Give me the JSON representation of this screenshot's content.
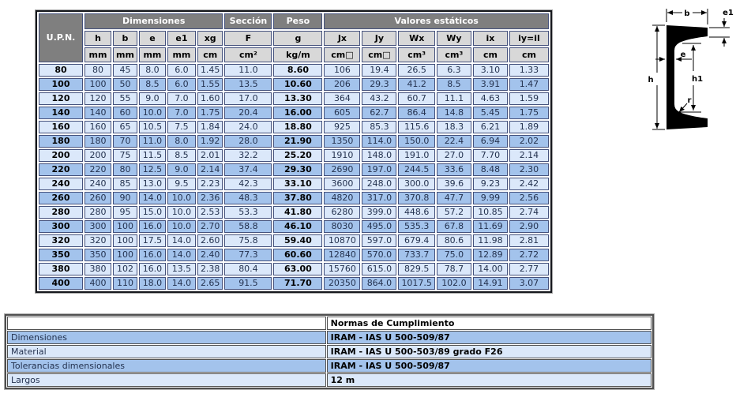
{
  "main_table": {
    "corner_label": "U.P.N.",
    "groups": [
      {
        "label": "Dimensiones",
        "span": 5
      },
      {
        "label": "Sección",
        "span": 1
      },
      {
        "label": "Peso",
        "span": 1
      },
      {
        "label": "Valores estáticos",
        "span": 6
      }
    ],
    "columns": [
      "h",
      "b",
      "e",
      "e1",
      "xg",
      "F",
      "g",
      "Jx",
      "Jy",
      "Wx",
      "Wy",
      "ix",
      "iy=il"
    ],
    "units": [
      "mm",
      "mm",
      "mm",
      "mm",
      "cm",
      "cm²",
      "kg/m",
      "cm□",
      "cm□",
      "cm³",
      "cm³",
      "cm",
      "cm"
    ],
    "rows": [
      {
        "upn": "80",
        "values": [
          "80",
          "45",
          "8.0",
          "6.0",
          "1.45",
          "11.0",
          "8.60",
          "106",
          "19.4",
          "26.5",
          "6.3",
          "3.10",
          "1.33"
        ]
      },
      {
        "upn": "100",
        "values": [
          "100",
          "50",
          "8.5",
          "6.0",
          "1.55",
          "13.5",
          "10.60",
          "206",
          "29.3",
          "41.2",
          "8.5",
          "3.91",
          "1.47"
        ]
      },
      {
        "upn": "120",
        "values": [
          "120",
          "55",
          "9.0",
          "7.0",
          "1.60",
          "17.0",
          "13.30",
          "364",
          "43.2",
          "60.7",
          "11.1",
          "4.63",
          "1.59"
        ]
      },
      {
        "upn": "140",
        "values": [
          "140",
          "60",
          "10.0",
          "7.0",
          "1.75",
          "20.4",
          "16.00",
          "605",
          "62.7",
          "86.4",
          "14.8",
          "5.45",
          "1.75"
        ]
      },
      {
        "upn": "160",
        "values": [
          "160",
          "65",
          "10.5",
          "7.5",
          "1.84",
          "24.0",
          "18.80",
          "925",
          "85.3",
          "115.6",
          "18.3",
          "6.21",
          "1.89"
        ]
      },
      {
        "upn": "180",
        "values": [
          "180",
          "70",
          "11.0",
          "8.0",
          "1.92",
          "28.0",
          "21.90",
          "1350",
          "114.0",
          "150.0",
          "22.4",
          "6.94",
          "2.02"
        ]
      },
      {
        "upn": "200",
        "values": [
          "200",
          "75",
          "11.5",
          "8.5",
          "2.01",
          "32.2",
          "25.20",
          "1910",
          "148.0",
          "191.0",
          "27.0",
          "7.70",
          "2.14"
        ]
      },
      {
        "upn": "220",
        "values": [
          "220",
          "80",
          "12.5",
          "9.0",
          "2.14",
          "37.4",
          "29.30",
          "2690",
          "197.0",
          "244.5",
          "33.6",
          "8.48",
          "2.30"
        ]
      },
      {
        "upn": "240",
        "values": [
          "240",
          "85",
          "13.0",
          "9.5",
          "2.23",
          "42.3",
          "33.10",
          "3600",
          "248.0",
          "300.0",
          "39.6",
          "9.23",
          "2.42"
        ]
      },
      {
        "upn": "260",
        "values": [
          "260",
          "90",
          "14.0",
          "10.0",
          "2.36",
          "48.3",
          "37.80",
          "4820",
          "317.0",
          "370.8",
          "47.7",
          "9.99",
          "2.56"
        ]
      },
      {
        "upn": "280",
        "values": [
          "280",
          "95",
          "15.0",
          "10.0",
          "2.53",
          "53.3",
          "41.80",
          "6280",
          "399.0",
          "448.6",
          "57.2",
          "10.85",
          "2.74"
        ]
      },
      {
        "upn": "300",
        "values": [
          "300",
          "100",
          "16.0",
          "10.0",
          "2.70",
          "58.8",
          "46.10",
          "8030",
          "495.0",
          "535.3",
          "67.8",
          "11.69",
          "2.90"
        ]
      },
      {
        "upn": "320",
        "values": [
          "320",
          "100",
          "17.5",
          "14.0",
          "2.60",
          "75.8",
          "59.40",
          "10870",
          "597.0",
          "679.4",
          "80.6",
          "11.98",
          "2.81"
        ]
      },
      {
        "upn": "350",
        "values": [
          "350",
          "100",
          "16.0",
          "14.0",
          "2.40",
          "77.3",
          "60.60",
          "12840",
          "570.0",
          "733.7",
          "75.0",
          "12.89",
          "2.72"
        ]
      },
      {
        "upn": "380",
        "values": [
          "380",
          "102",
          "16.0",
          "13.5",
          "2.38",
          "80.4",
          "63.00",
          "15760",
          "615.0",
          "829.5",
          "78.7",
          "14.00",
          "2.77"
        ]
      },
      {
        "upn": "400",
        "values": [
          "400",
          "110",
          "18.0",
          "14.0",
          "2.65",
          "91.5",
          "71.70",
          "20350",
          "864.0",
          "1017.5",
          "102.0",
          "14.91",
          "3.07"
        ]
      }
    ]
  },
  "normas_table": {
    "header": "Normas de Cumplimiento",
    "rows": [
      {
        "label": "Dimensiones",
        "value": "IRAM - IAS U 500-509/87"
      },
      {
        "label": "Material",
        "value": "IRAM - IAS U 500-503/89 grado F26"
      },
      {
        "label": "Tolerancias dimensionales",
        "value": "IRAM - IAS U 500-509/87"
      },
      {
        "label": "Largos",
        "value": "12 m"
      }
    ]
  },
  "diagram": {
    "labels": {
      "b": "b",
      "e1": "e1",
      "e": "e",
      "h": "h",
      "h1": "h1",
      "r": "r"
    }
  }
}
